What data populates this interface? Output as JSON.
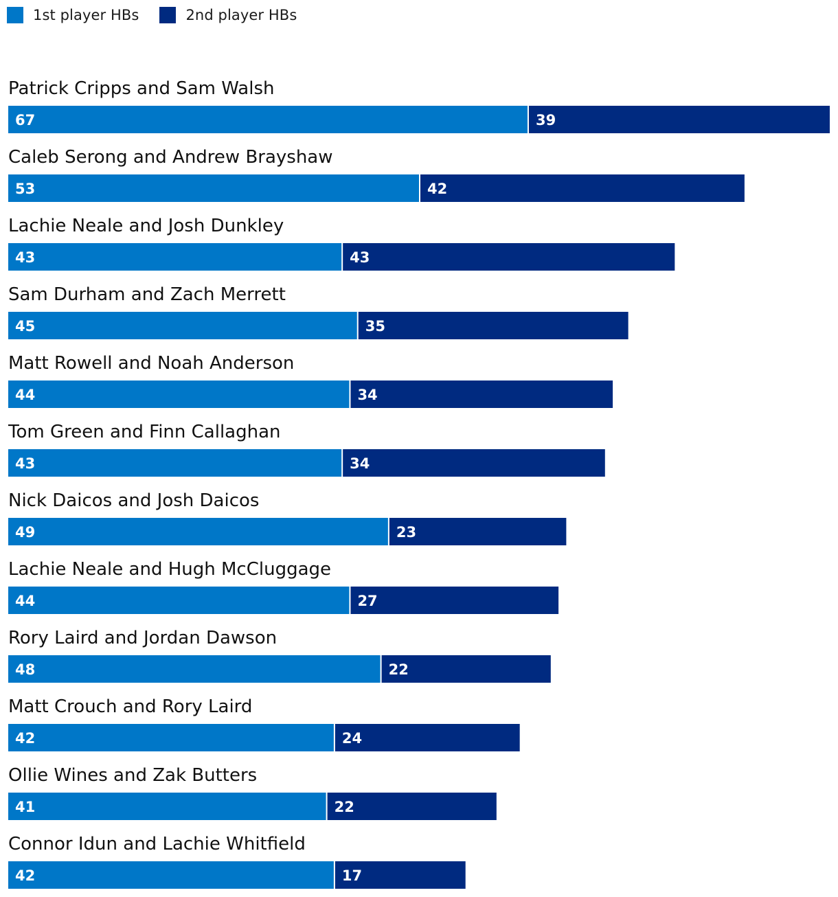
{
  "legend": {
    "first_label": "1st player HBs",
    "second_label": "2nd player HBs"
  },
  "colors": {
    "first": "#0077c8",
    "second": "#002a80",
    "separator": "#ffffff"
  },
  "chart_data": {
    "type": "bar",
    "orientation": "horizontal",
    "stacked": true,
    "title": "",
    "xlabel": "",
    "ylabel": "",
    "categories": [
      "Patrick Cripps and Sam Walsh",
      "Caleb Serong and Andrew Brayshaw",
      "Lachie Neale and Josh Dunkley",
      "Sam Durham and Zach Merrett",
      "Matt Rowell and Noah Anderson",
      "Tom Green and Finn Callaghan",
      "Nick Daicos and Josh Daicos",
      "Lachie Neale and Hugh McCluggage",
      "Rory Laird and Jordan Dawson",
      "Matt Crouch and Rory Laird",
      "Ollie Wines and Zak Butters",
      "Connor Idun and Lachie Whitfield"
    ],
    "series": [
      {
        "name": "1st player HBs",
        "values": [
          67,
          53,
          43,
          45,
          44,
          43,
          49,
          44,
          48,
          42,
          41,
          42
        ]
      },
      {
        "name": "2nd player HBs",
        "values": [
          39,
          42,
          43,
          35,
          34,
          34,
          23,
          27,
          22,
          24,
          22,
          17
        ]
      }
    ],
    "xlim": [
      0,
      106
    ],
    "legend_position": "top-left",
    "grid": false
  }
}
